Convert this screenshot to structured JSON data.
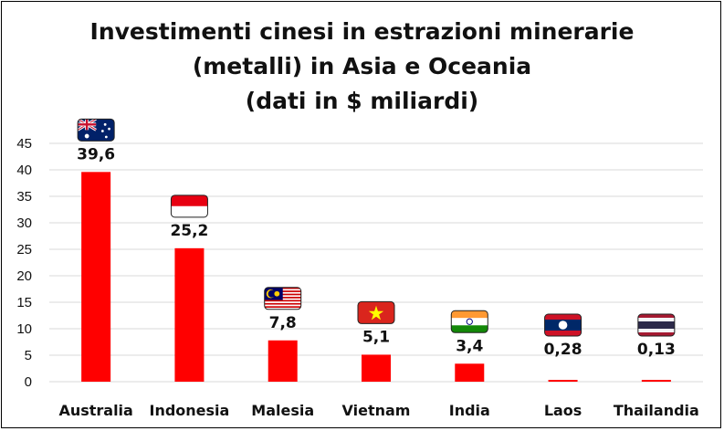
{
  "chart_data": {
    "type": "bar",
    "title_lines": [
      "Investimenti cinesi in estrazioni minerarie",
      "(metalli) in Asia e Oceania",
      "(dati in $ miliardi)"
    ],
    "categories": [
      "Australia",
      "Indonesia",
      "Malesia",
      "Vietnam",
      "India",
      "Laos",
      "Thailandia"
    ],
    "values": [
      39.6,
      25.2,
      7.8,
      5.1,
      3.4,
      0.28,
      0.13
    ],
    "data_labels": [
      "39,6",
      "25,2",
      "7,8",
      "5,1",
      "3,4",
      "0,28",
      "0,13"
    ],
    "flags": [
      "australia-flag",
      "indonesia-flag",
      "malaysia-flag",
      "vietnam-flag",
      "india-flag",
      "laos-flag",
      "thailand-flag"
    ],
    "yticks": [
      0,
      5,
      10,
      15,
      20,
      25,
      30,
      35,
      40,
      45
    ],
    "ylim": [
      0,
      45
    ],
    "grid": true,
    "bar_color": "#ff0000",
    "grid_color": "#d9d9d9",
    "xlabel": "",
    "ylabel": ""
  }
}
